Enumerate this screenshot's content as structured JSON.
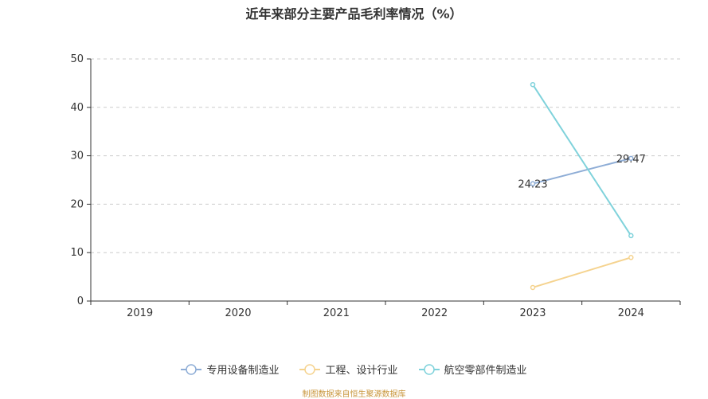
{
  "chart_data": {
    "type": "line",
    "title": "近年来部分主要产品毛利率情况（%）",
    "xlabel": "",
    "ylabel": "",
    "categories": [
      "2019",
      "2020",
      "2021",
      "2022",
      "2023",
      "2024"
    ],
    "ylim": [
      0,
      50
    ],
    "yticks": [
      0,
      10,
      20,
      30,
      40,
      50
    ],
    "grid": true,
    "legend_position": "bottom",
    "series": [
      {
        "name": "专用设备制造业",
        "color": "#8eadd6",
        "values": [
          null,
          null,
          null,
          null,
          24.23,
          29.47
        ],
        "labels": [
          null,
          null,
          null,
          null,
          "24.23",
          "29.47"
        ]
      },
      {
        "name": "工程、设计行业",
        "color": "#f5d38f",
        "values": [
          null,
          null,
          null,
          null,
          2.8,
          9.0
        ],
        "labels": [
          null,
          null,
          null,
          null,
          null,
          null
        ]
      },
      {
        "name": "航空零部件制造业",
        "color": "#7fd2db",
        "values": [
          null,
          null,
          null,
          null,
          44.7,
          13.5
        ],
        "labels": [
          null,
          null,
          null,
          null,
          null,
          null
        ]
      }
    ]
  },
  "source": "制图数据来自恒生聚源数据库"
}
